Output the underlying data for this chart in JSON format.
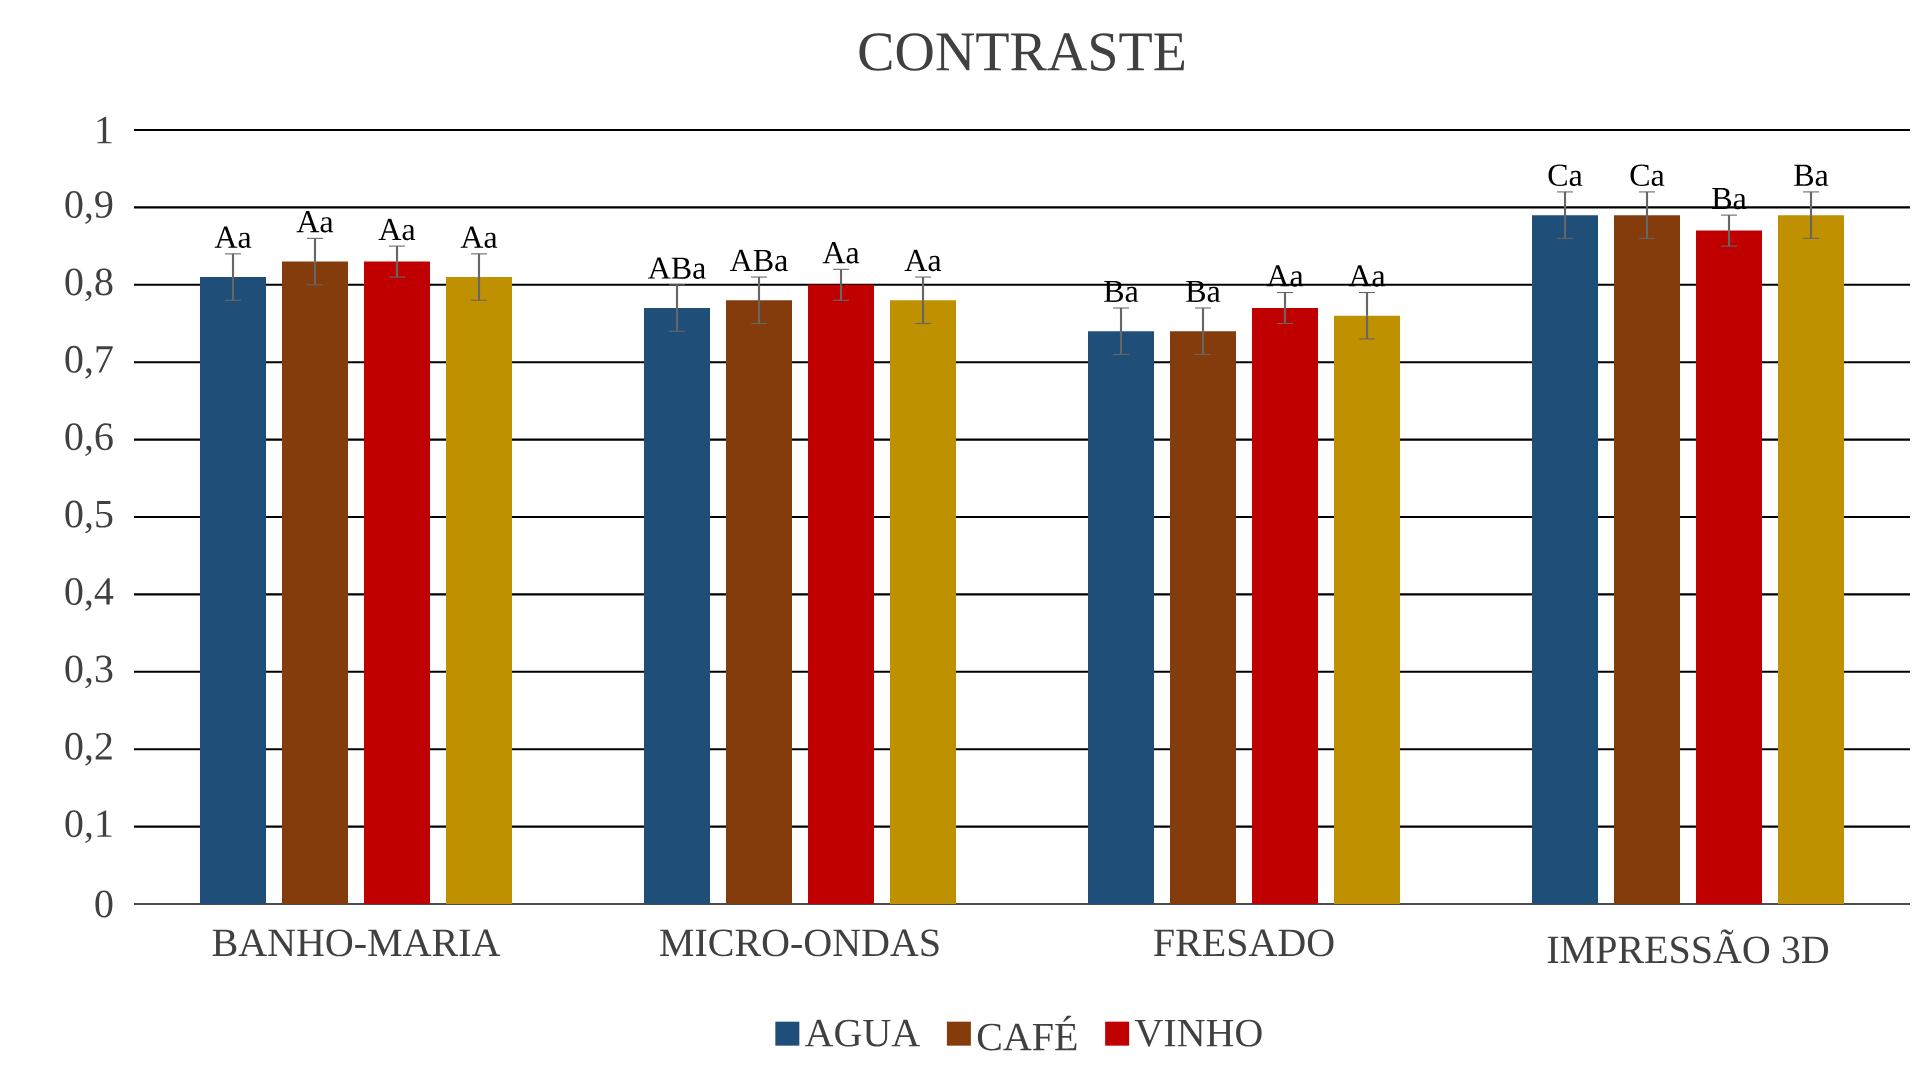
{
  "chart_data": {
    "type": "bar",
    "title": "CONTRASTE",
    "categories": [
      "BANHO-MARIA",
      "MICRO-ONDAS",
      "FRESADO",
      "IMPRESSÃO 3D"
    ],
    "series": [
      {
        "name": "AGUA",
        "color": "#1f4e79",
        "values": [
          0.81,
          0.77,
          0.74,
          0.89
        ],
        "errors": [
          0.03,
          0.03,
          0.03,
          0.03
        ],
        "value_labels": [
          "Aa",
          "ABa",
          "Ba",
          "Ca"
        ]
      },
      {
        "name": "CAFÉ",
        "color": "#843c0c",
        "values": [
          0.83,
          0.78,
          0.74,
          0.89
        ],
        "errors": [
          0.03,
          0.03,
          0.03,
          0.03
        ],
        "value_labels": [
          "Aa",
          "ABa",
          "Ba",
          "Ca"
        ]
      },
      {
        "name": "VINHO",
        "color": "#c00000",
        "values": [
          0.83,
          0.8,
          0.77,
          0.87
        ],
        "errors": [
          0.02,
          0.02,
          0.02,
          0.02
        ],
        "value_labels": [
          "Aa",
          "Aa",
          "Aa",
          "Ba"
        ]
      },
      {
        "color": "#bf9000",
        "values": [
          0.81,
          0.78,
          0.76,
          0.89
        ],
        "errors": [
          0.03,
          0.03,
          0.03,
          0.03
        ],
        "value_labels": [
          "Aa",
          "Aa",
          "Aa",
          "Ba"
        ]
      }
    ],
    "ylim": [
      0,
      1
    ],
    "yticks": [
      {
        "value": 0,
        "label": "0"
      },
      {
        "value": 0.1,
        "label": "0,1"
      },
      {
        "value": 0.2,
        "label": "0,2"
      },
      {
        "value": 0.3,
        "label": "0,3"
      },
      {
        "value": 0.4,
        "label": "0,4"
      },
      {
        "value": 0.5,
        "label": "0,5"
      },
      {
        "value": 0.6,
        "label": "0,6"
      },
      {
        "value": 0.7,
        "label": "0,7"
      },
      {
        "value": 0.8,
        "label": "0,8"
      },
      {
        "value": 0.9,
        "label": "0,9"
      },
      {
        "value": 1,
        "label": "1"
      }
    ],
    "grid": "y",
    "legend": "bottom"
  }
}
